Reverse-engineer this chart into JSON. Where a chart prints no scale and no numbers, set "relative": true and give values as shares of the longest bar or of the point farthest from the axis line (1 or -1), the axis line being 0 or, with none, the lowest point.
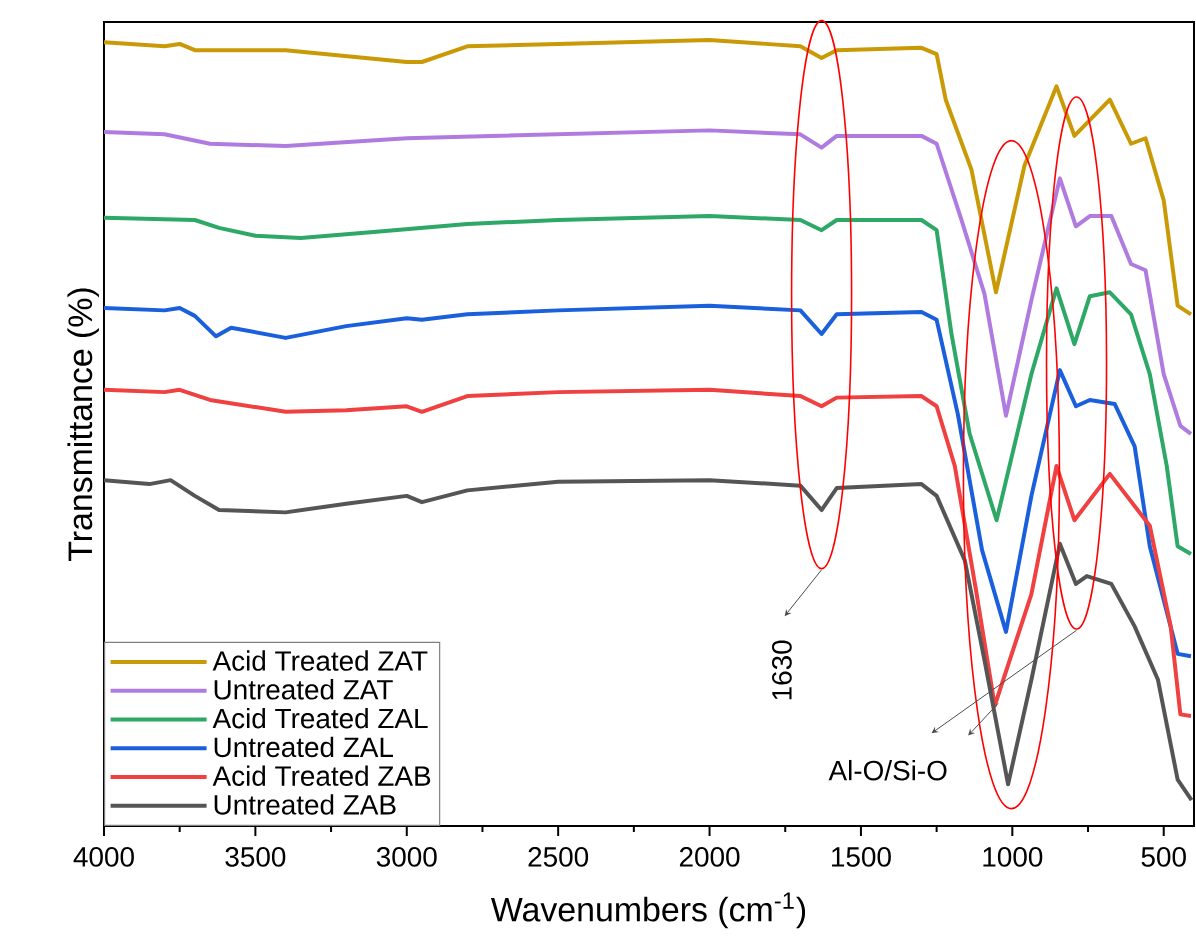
{
  "chart_data": {
    "type": "line",
    "relative": true,
    "xlabel": "Wavenumbers (cm$^{-1}$)",
    "ylabel": "Transmittance (%)",
    "xlim": [
      4000,
      400
    ],
    "xticks": [
      4000,
      3500,
      3000,
      2500,
      2000,
      1500,
      1000,
      500
    ],
    "legend": "bottom left",
    "annotations": [
      "1630",
      "Al-O/Si-O"
    ],
    "series": [
      {
        "name": "Acid Treated ZAT",
        "color": "#c99a06",
        "x": [
          4000,
          3800,
          3750,
          3700,
          3400,
          3000,
          2950,
          2800,
          2500,
          2000,
          1700,
          1630,
          1580,
          1300,
          1250,
          1220,
          1135,
          1054,
          960,
          854,
          795,
          678,
          608,
          560,
          500,
          454,
          410
        ],
        "values": [
          0.997,
          0.992,
          0.995,
          0.987,
          0.987,
          0.972,
          0.972,
          0.992,
          0.995,
          1.0,
          0.992,
          0.977,
          0.987,
          0.99,
          0.982,
          0.924,
          0.835,
          0.679,
          0.84,
          0.941,
          0.878,
          0.924,
          0.868,
          0.875,
          0.796,
          0.662,
          0.651
        ]
      },
      {
        "name": "Untreated ZAT",
        "color": "#b07be0",
        "x": [
          4000,
          3800,
          3650,
          3400,
          3000,
          2500,
          2000,
          1700,
          1630,
          1580,
          1300,
          1250,
          1168,
          1092,
          1021,
          937,
          843,
          790,
          744,
          673,
          608,
          560,
          500,
          445,
          410
        ],
        "values": [
          0.883,
          0.88,
          0.868,
          0.865,
          0.875,
          0.88,
          0.885,
          0.88,
          0.863,
          0.878,
          0.878,
          0.868,
          0.771,
          0.677,
          0.522,
          0.669,
          0.824,
          0.763,
          0.776,
          0.776,
          0.715,
          0.707,
          0.575,
          0.509,
          0.499
        ]
      },
      {
        "name": "Acid Treated ZAL",
        "color": "#2ea866",
        "x": [
          4000,
          3700,
          3620,
          3500,
          3350,
          3100,
          2800,
          2500,
          2000,
          1700,
          1630,
          1580,
          1300,
          1250,
          1201,
          1141,
          1052,
          937,
          854,
          795,
          744,
          678,
          608,
          546,
          490,
          454,
          410
        ],
        "values": [
          0.774,
          0.771,
          0.761,
          0.751,
          0.748,
          0.756,
          0.766,
          0.771,
          0.776,
          0.771,
          0.758,
          0.771,
          0.771,
          0.758,
          0.626,
          0.499,
          0.389,
          0.575,
          0.684,
          0.613,
          0.674,
          0.679,
          0.651,
          0.575,
          0.458,
          0.356,
          0.346
        ]
      },
      {
        "name": "Untreated ZAL",
        "color": "#1a5fdc",
        "x": [
          4000,
          3800,
          3750,
          3700,
          3630,
          3580,
          3400,
          3200,
          3000,
          2950,
          2800,
          2500,
          2000,
          1700,
          1630,
          1580,
          1300,
          1250,
          1180,
          1100,
          1021,
          937,
          843,
          790,
          744,
          662,
          596,
          546,
          454,
          410
        ],
        "values": [
          0.659,
          0.656,
          0.659,
          0.649,
          0.623,
          0.634,
          0.621,
          0.636,
          0.646,
          0.644,
          0.651,
          0.656,
          0.662,
          0.656,
          0.626,
          0.651,
          0.654,
          0.644,
          0.524,
          0.351,
          0.247,
          0.42,
          0.58,
          0.534,
          0.542,
          0.537,
          0.483,
          0.356,
          0.219,
          0.216
        ]
      },
      {
        "name": "Acid Treated ZAB",
        "color": "#f04040",
        "x": [
          4000,
          3800,
          3750,
          3650,
          3400,
          3200,
          3000,
          2950,
          2800,
          2500,
          2000,
          1700,
          1630,
          1580,
          1300,
          1250,
          1190,
          1120,
          1058,
          937,
          854,
          795,
          678,
          546,
          477,
          445,
          410
        ],
        "values": [
          0.555,
          0.552,
          0.555,
          0.542,
          0.527,
          0.529,
          0.534,
          0.527,
          0.547,
          0.552,
          0.555,
          0.547,
          0.534,
          0.545,
          0.547,
          0.534,
          0.458,
          0.3,
          0.153,
          0.295,
          0.458,
          0.389,
          0.448,
          0.382,
          0.254,
          0.142,
          0.14
        ]
      },
      {
        "name": "Untreated ZAB",
        "color": "#555555",
        "x": [
          4000,
          3850,
          3780,
          3700,
          3620,
          3400,
          3200,
          3000,
          2950,
          2800,
          2500,
          2000,
          1700,
          1630,
          1580,
          1300,
          1250,
          1157,
          1092,
          1014,
          937,
          843,
          790,
          754,
          673,
          596,
          519,
          454,
          408
        ],
        "values": [
          0.44,
          0.435,
          0.44,
          0.42,
          0.402,
          0.399,
          0.41,
          0.42,
          0.412,
          0.427,
          0.438,
          0.44,
          0.433,
          0.402,
          0.43,
          0.435,
          0.42,
          0.338,
          0.211,
          0.053,
          0.186,
          0.359,
          0.308,
          0.318,
          0.308,
          0.254,
          0.186,
          0.059,
          0.033
        ]
      }
    ]
  }
}
